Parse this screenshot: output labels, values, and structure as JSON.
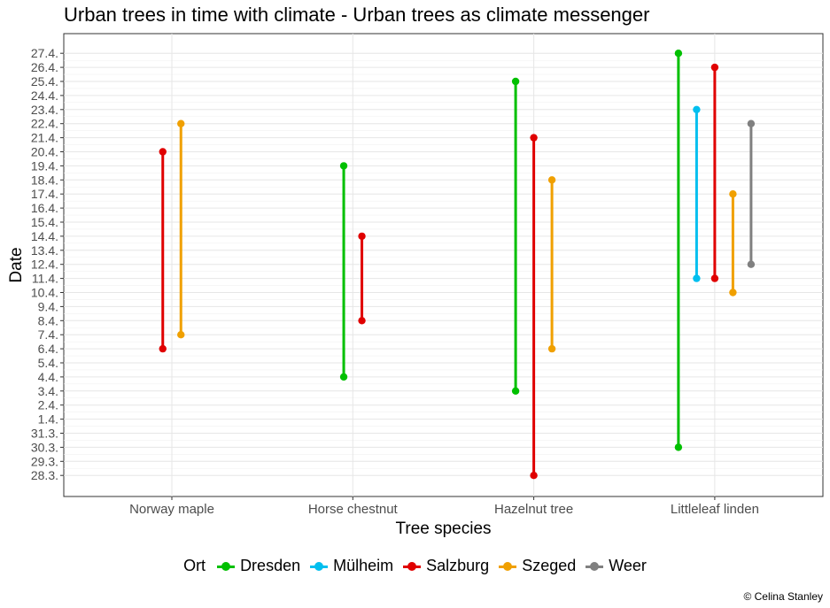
{
  "title": "Urban trees in time with climate - Urban trees as climate messenger",
  "caption": "© Celina Stanley",
  "chart_data": {
    "type": "range",
    "title": "Urban trees in time with climate - Urban trees as climate messenger",
    "xlabel": "Tree species",
    "ylabel": "Date",
    "categories": [
      "Norway maple",
      "Horse chestnut",
      "Hazelnut tree",
      "Littleleaf linden"
    ],
    "y_tick_labels": [
      "28.3.",
      "29.3.",
      "30.3.",
      "31.3.",
      "1.4.",
      "2.4.",
      "3.4.",
      "4.4.",
      "5.4.",
      "6.4.",
      "7.4.",
      "8.4.",
      "9.4.",
      "10.4.",
      "11.4.",
      "12.4.",
      "13.4.",
      "14.4.",
      "15.4.",
      "16.4.",
      "17.4.",
      "18.4.",
      "19.4.",
      "20.4.",
      "21.4.",
      "22.4.",
      "23.4.",
      "24.4.",
      "25.4.",
      "26.4.",
      "27.4."
    ],
    "grid": true,
    "legend": {
      "title": "Ort",
      "position": "bottom"
    },
    "series": [
      {
        "name": "Dresden",
        "color": "#00C000",
        "ranges": [
          null,
          [
            "4.4.",
            "19.4."
          ],
          [
            "3.4.",
            "25.4."
          ],
          [
            "30.3.",
            "27.4."
          ]
        ]
      },
      {
        "name": "Mülheim",
        "color": "#00BFEF",
        "ranges": [
          null,
          null,
          null,
          [
            "11.4.",
            "23.4."
          ]
        ]
      },
      {
        "name": "Salzburg",
        "color": "#E00000",
        "ranges": [
          [
            "6.4.",
            "20.4."
          ],
          [
            "8.4.",
            "14.4."
          ],
          [
            "28.3.",
            "21.4."
          ],
          [
            "11.4.",
            "26.4."
          ]
        ]
      },
      {
        "name": "Szeged",
        "color": "#F0A000",
        "ranges": [
          [
            "7.4.",
            "22.4."
          ],
          null,
          [
            "6.4.",
            "18.4."
          ],
          [
            "10.4.",
            "17.4."
          ]
        ]
      },
      {
        "name": "Weer",
        "color": "#808080",
        "ranges": [
          null,
          null,
          null,
          [
            "12.4.",
            "22.4."
          ]
        ]
      }
    ]
  }
}
